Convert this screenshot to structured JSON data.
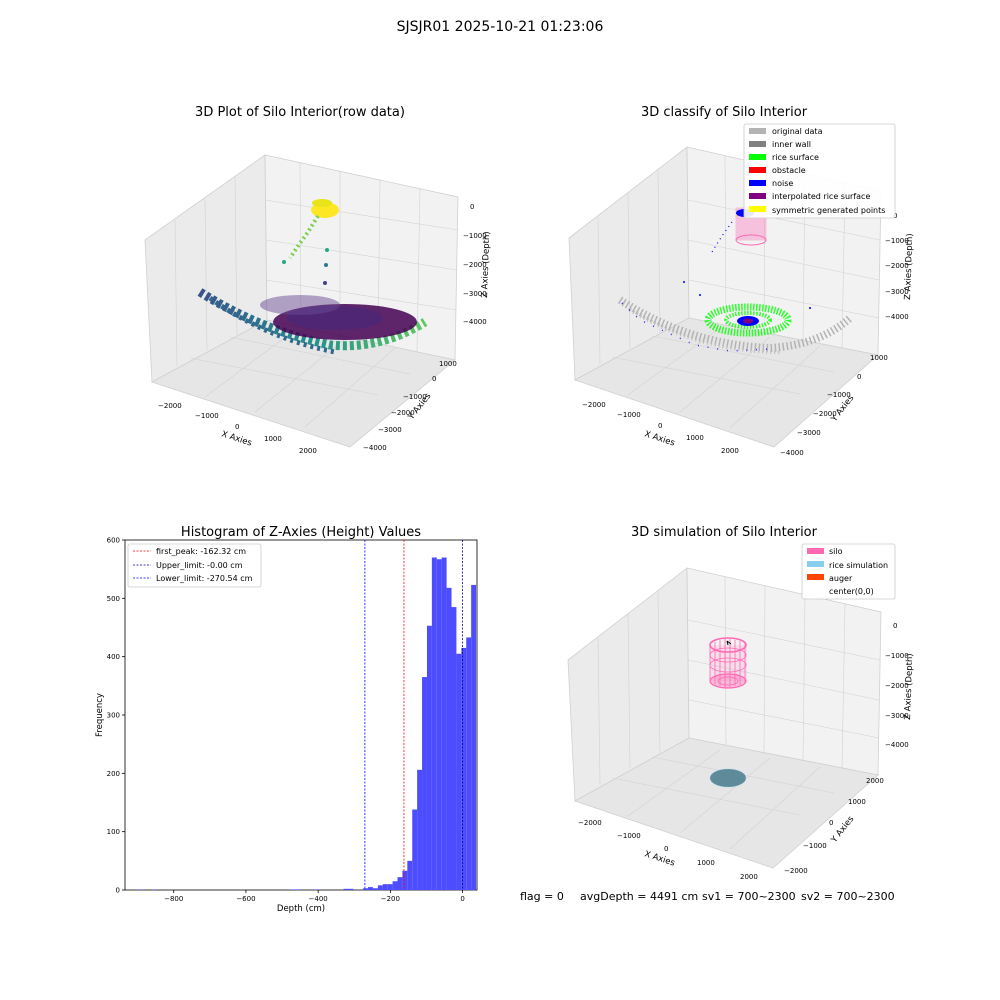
{
  "figure": {
    "suptitle": "SJSJR01 2025-10-21 01:23:06",
    "footer": {
      "flag": "flag = 0",
      "avg_depth": "avgDepth = 4491 cm",
      "sv1": "sv1 = 700~2300",
      "sv2": "sv2 = 700~2300"
    }
  },
  "colors": {
    "hist_bar": "#4d4dff",
    "peak_line": "#ff0000",
    "limit_line": "#00008b",
    "pane": "#f2f2f2",
    "original_data": "#b3b3b3",
    "inner_wall": "#808080",
    "rice_surface": "#00ff00",
    "obstacle": "#ff0000",
    "noise": "#0000ff",
    "interpolated": "#800080",
    "symmetric": "#ffff00",
    "silo": "#ff69b4",
    "rice_sim": "#87ceeb",
    "auger": "#ff4500"
  },
  "chart_data": [
    {
      "type": "scatter",
      "projection": "3d",
      "title": "3D Plot of Silo Interior(row data)",
      "xlabel": "X Axies",
      "ylabel": "Y Axies",
      "zlabel": "Z Axies (Depth)",
      "x_ticks": [
        "−2000",
        "−1000",
        "0",
        "1000",
        "2000"
      ],
      "y_ticks": [
        "1000",
        "0",
        "−1000",
        "−2000",
        "−3000",
        "−4000"
      ],
      "z_ticks": [
        "0",
        "−1000",
        "−2000",
        "−3000",
        "−4000"
      ],
      "colormap": "viridis",
      "series": [
        {
          "points": [
            [
              -2200,
              0,
              -3100
            ],
            [
              -1500,
              0,
              -3400
            ],
            [
              -800,
              0,
              -3800
            ],
            [
              0,
              0,
              -4300
            ],
            [
              800,
              0,
              -3800
            ],
            [
              1600,
              0,
              -3500
            ],
            [
              2200,
              0,
              -3200
            ],
            [
              0,
              1000,
              -3800
            ],
            [
              0,
              -1000,
              -3800
            ],
            [
              0,
              -2000,
              -3500
            ],
            [
              0,
              -2800,
              -3300
            ],
            [
              -200,
              -1500,
              -500
            ],
            [
              -300,
              -1500,
              -1000
            ],
            [
              -400,
              -1400,
              -1600
            ],
            [
              -250,
              -1500,
              -2200
            ],
            [
              -300,
              -1400,
              -2800
            ]
          ]
        }
      ]
    },
    {
      "type": "scatter",
      "projection": "3d",
      "title": "3D classify of Silo Interior",
      "xlabel": "X Axies",
      "ylabel": "Y Axies",
      "zlabel": "Z Axies (Depth)",
      "x_ticks": [
        "−2000",
        "−1000",
        "0",
        "1000",
        "2000"
      ],
      "y_ticks": [
        "1000",
        "0",
        "−1000",
        "−2000",
        "−3000",
        "−4000"
      ],
      "z_ticks": [
        "0",
        "−1000",
        "−2000",
        "−3000",
        "−4000"
      ],
      "legend": {
        "position": "top-right",
        "entries": [
          "original data",
          "inner wall",
          "rice surface",
          "obstacle",
          "noise",
          "interpolated rice surface",
          "symmetric generated points"
        ]
      }
    },
    {
      "type": "bar",
      "title": "Histogram of Z-Axies (Height) Values",
      "xlabel": "Depth (cm)",
      "ylabel": "Frequency",
      "xlim": [
        -935,
        40
      ],
      "ylim": [
        0,
        600
      ],
      "x_ticks": [
        -800,
        -600,
        -400,
        -200,
        0
      ],
      "y_ticks": [
        0,
        100,
        200,
        300,
        400,
        500,
        600
      ],
      "bin_width": 13.6,
      "bin_edges_start": -901,
      "values": [
        1,
        0,
        0,
        1,
        0,
        0,
        0,
        0,
        0,
        0,
        0,
        0,
        0,
        0,
        0,
        0,
        0,
        0,
        0,
        0,
        0,
        0,
        0,
        0,
        0,
        0,
        0,
        0,
        0,
        0,
        0,
        1,
        1,
        0,
        0,
        0,
        1,
        0,
        0,
        0,
        0,
        0,
        2,
        2,
        0,
        0,
        3,
        5,
        3,
        8,
        10,
        10,
        15,
        22,
        33,
        50,
        138,
        206,
        365,
        453,
        570,
        567,
        570,
        518,
        485,
        405,
        415,
        433,
        523
      ],
      "vlines": [
        {
          "label": "first_peak: -162.32 cm",
          "x": -162.32,
          "color": "red",
          "style": "dashed"
        },
        {
          "label": "Upper_limit: -0.00 cm",
          "x": 0.0,
          "color": "darkblue",
          "style": "dashed"
        },
        {
          "label": "Lower_limit: -270.54 cm",
          "x": -270.54,
          "color": "blue",
          "style": "dashed"
        }
      ],
      "legend": {
        "position": "top-left"
      }
    },
    {
      "type": "scatter",
      "projection": "3d",
      "title": "3D simulation of Silo Interior",
      "xlabel": "X Axies",
      "ylabel": "Y Axies",
      "zlabel": "Z Axies (Depth)",
      "x_ticks": [
        "−2000",
        "−1000",
        "0",
        "1000",
        "2000"
      ],
      "y_ticks": [
        "2000",
        "1000",
        "0",
        "−1000",
        "−2000"
      ],
      "z_ticks": [
        "0",
        "−1000",
        "−2000",
        "−3000",
        "−4000"
      ],
      "legend": {
        "position": "top-right",
        "entries": [
          "silo",
          "rice simulation",
          "auger",
          "center(0,0)"
        ]
      }
    }
  ]
}
